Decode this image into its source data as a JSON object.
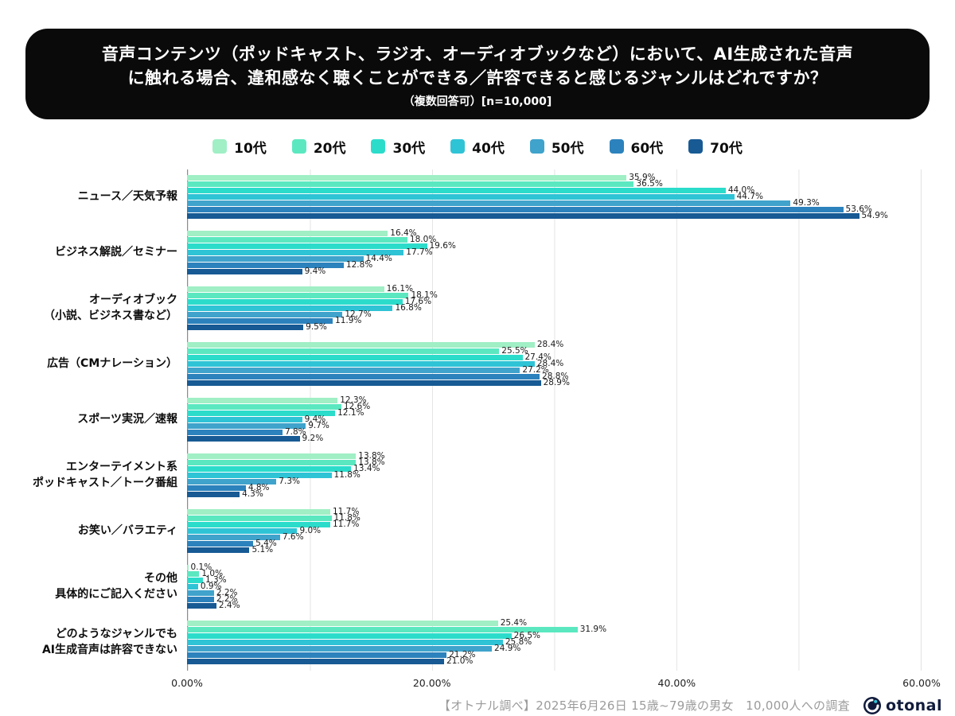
{
  "title": {
    "line1": "音声コンテンツ（ポッドキャスト、ラジオ、オーディオブックなど）において、AI生成された音声",
    "line2": "に触れる場合、違和感なく聴くことができる／許容できると感じるジャンルはどれですか？",
    "note": "（複数回答可）[n=10,000]"
  },
  "chart_data": {
    "type": "bar",
    "orientation": "horizontal",
    "grid": true,
    "legend_position": "top",
    "xlim": [
      0,
      60
    ],
    "x_tick_labels": [
      "0.00%",
      "20.00%",
      "40.00%",
      "60.00%"
    ],
    "categories": [
      "ニュース／天気予報",
      "ビジネス解説／セミナー",
      "オーディオブック\n（小説、ビジネス書など）",
      "広告（CMナレーション）",
      "スポーツ実況／速報",
      "エンターテイメント系\nポッドキャスト／トーク番組",
      "お笑い／バラエティ",
      "その他\n具体的にご記入ください",
      "どのようなジャンルでも\nAI生成音声は許容できない"
    ],
    "series": [
      {
        "name": "10代",
        "color": "#A0EFC5",
        "values": [
          35.9,
          16.4,
          16.1,
          28.4,
          12.3,
          13.8,
          11.7,
          0.1,
          25.4
        ]
      },
      {
        "name": "20代",
        "color": "#5BE8C0",
        "values": [
          36.5,
          18.0,
          18.1,
          25.5,
          12.6,
          13.8,
          11.8,
          1.0,
          31.9
        ]
      },
      {
        "name": "30代",
        "color": "#2CDCCB",
        "values": [
          44.0,
          19.6,
          17.6,
          27.4,
          12.1,
          13.4,
          11.7,
          1.3,
          26.5
        ]
      },
      {
        "name": "40代",
        "color": "#2FC3D6",
        "values": [
          44.7,
          17.7,
          16.8,
          28.4,
          9.4,
          11.8,
          9.0,
          0.9,
          25.8
        ]
      },
      {
        "name": "50代",
        "color": "#3FA3CC",
        "values": [
          49.3,
          14.4,
          12.7,
          27.2,
          9.7,
          7.3,
          7.6,
          2.2,
          24.9
        ]
      },
      {
        "name": "60代",
        "color": "#2C82BC",
        "values": [
          53.6,
          12.8,
          11.9,
          28.8,
          7.8,
          4.8,
          5.4,
          2.2,
          21.2
        ]
      },
      {
        "name": "70代",
        "color": "#175A94",
        "values": [
          54.9,
          9.4,
          9.5,
          28.9,
          9.2,
          4.3,
          5.1,
          2.4,
          21.0
        ]
      }
    ]
  },
  "footer": {
    "source": "【オトナル調べ】2025年6月26日 15歳~79歳の男女　10,000人への調査",
    "logo_text": "otonal"
  }
}
